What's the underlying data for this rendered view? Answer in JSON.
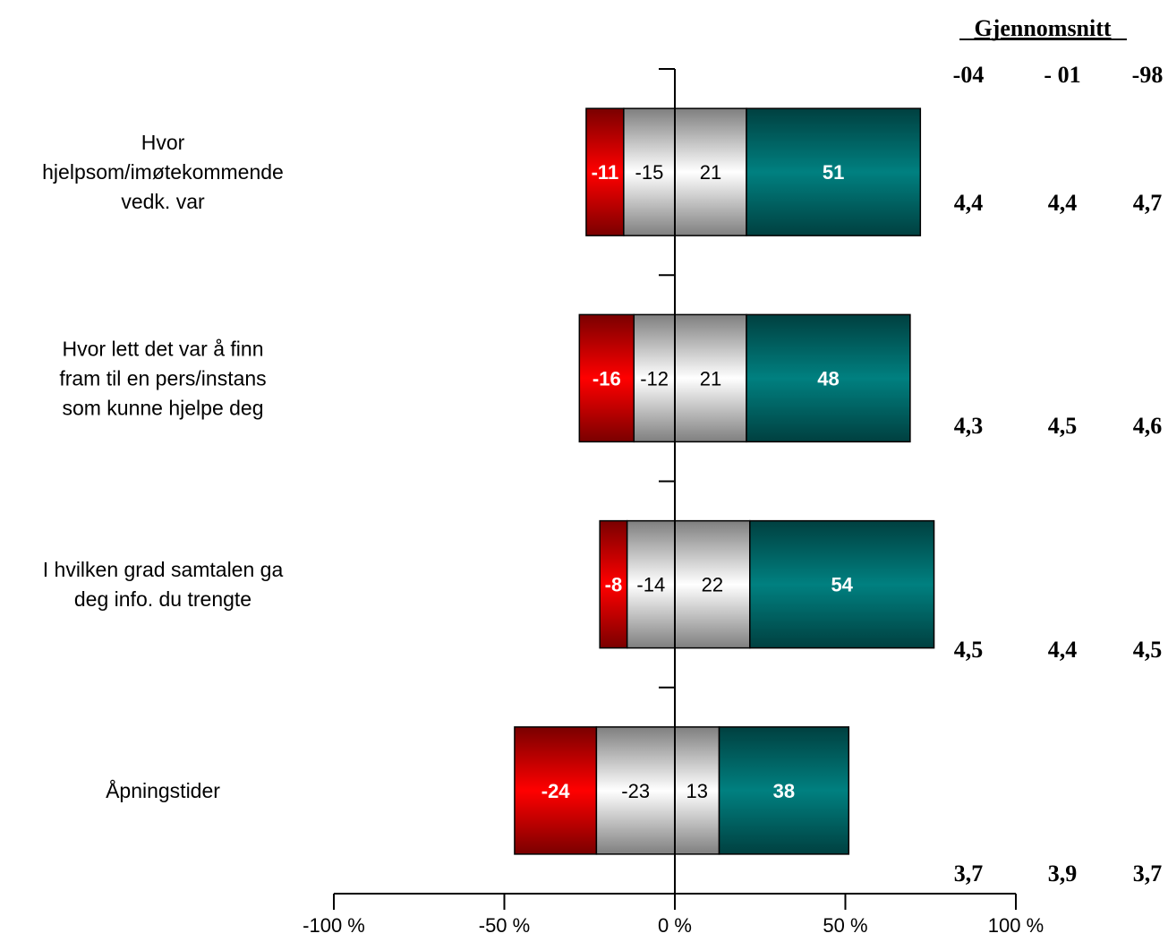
{
  "chart_data": {
    "type": "bar",
    "stacked": true,
    "orientation": "horizontal",
    "categories": [
      "Hvor hjelpsom/imøtekommende vedk. var",
      "Hvor lett det var å finn fram til en pers/instans som kunne hjelpe deg",
      "I hvilken grad samtalen ga deg info. du trengte",
      "Åpningstider"
    ],
    "category_label_lines": [
      [
        "Hvor",
        "hjelpsom/imøtekommende",
        "vedk. var"
      ],
      [
        "Hvor lett det var å finn",
        "fram til en pers/instans",
        "som kunne hjelpe deg"
      ],
      [
        "I hvilken grad samtalen ga",
        "deg info. du trengte"
      ],
      [
        "Åpningstider"
      ]
    ],
    "series": [
      {
        "values": [
          -11,
          -16,
          -8,
          -24
        ],
        "color": "#e00000",
        "side": "negative"
      },
      {
        "values": [
          -15,
          -12,
          -14,
          -23
        ],
        "color": "#d9d9d9",
        "side": "negative"
      },
      {
        "values": [
          21,
          21,
          22,
          13
        ],
        "color": "#d9d9d9",
        "side": "positive"
      },
      {
        "values": [
          51,
          48,
          54,
          38
        ],
        "color": "#008080",
        "side": "positive"
      }
    ],
    "data_labels": [
      [
        "-11",
        "-15",
        "21",
        "51"
      ],
      [
        "-16",
        "-12",
        "21",
        "48"
      ],
      [
        "-8",
        "-14",
        "22",
        "54"
      ],
      [
        "-24",
        "-23",
        "13",
        "38"
      ]
    ],
    "xlim": [
      -100,
      100
    ],
    "xticks": [
      -100,
      -50,
      0,
      50,
      100
    ],
    "xtick_labels": [
      "-100 %",
      "-50 %",
      "0 %",
      "50 %",
      "100 %"
    ],
    "grid": false,
    "side_table": {
      "title": "Gjennomsnitt",
      "columns": [
        "-04",
        "- 01",
        "-98"
      ],
      "rows": [
        [
          "4,4",
          "4,4",
          "4,7"
        ],
        [
          "4,3",
          "4,5",
          "4,6"
        ],
        [
          "4,5",
          "4,4",
          "4,5"
        ],
        [
          "3,7",
          "3,9",
          "3,7"
        ]
      ]
    }
  }
}
